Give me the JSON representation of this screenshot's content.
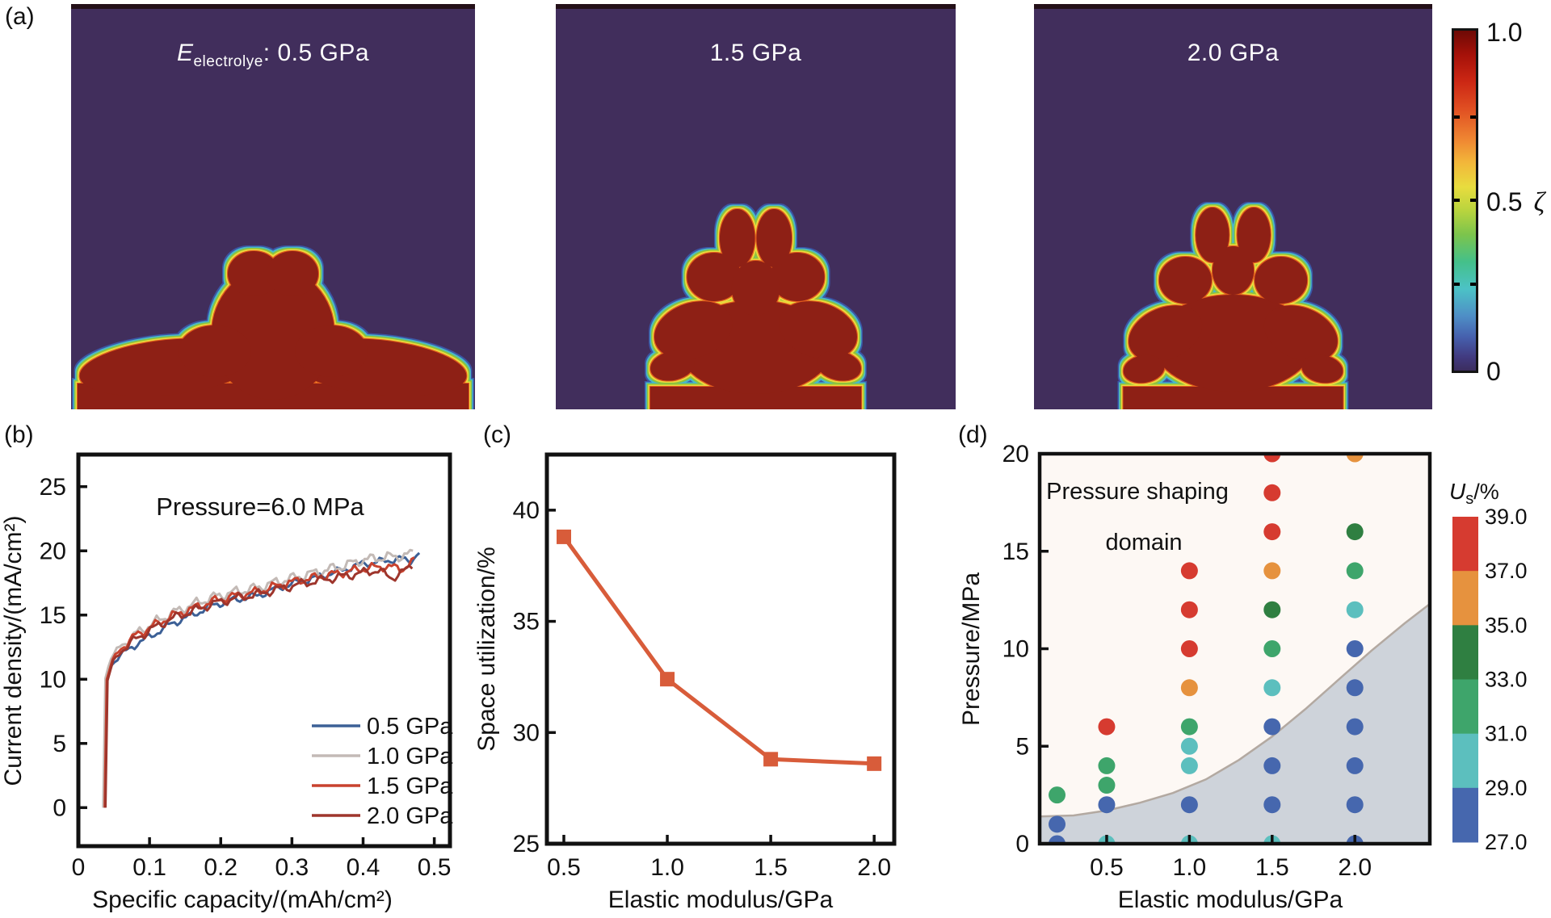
{
  "figure": {
    "bg": "#ffffff",
    "panels": {
      "a": "(a)",
      "b": "(b)",
      "c": "(c)",
      "d": "(d)"
    }
  },
  "panel_a": {
    "bg_color": "#412e5c",
    "body_color": "#8e2015",
    "top_strip_color": "#241018",
    "edge_layers": [
      {
        "color": "#3b55a5",
        "radius": 7
      },
      {
        "color": "#4ab8c8",
        "radius": 5.5
      },
      {
        "color": "#8cc43c",
        "radius": 4
      },
      {
        "color": "#ecd83c",
        "radius": 2.5
      },
      {
        "color": "#e05a1e",
        "radius": 1.2
      }
    ],
    "snapshots": [
      {
        "label_E": "E",
        "label_sub": "electrolye",
        "label_rest": ": 0.5 GPa"
      },
      {
        "label": "1.5 GPa"
      },
      {
        "label": "2.0 GPa"
      }
    ],
    "colorbar": {
      "top_label": "1.0",
      "mid_label": "0.5",
      "mid_symbol": "ζ",
      "bottom_label": "0",
      "gradient": [
        "#6e0a05 0%",
        "#a51109 7%",
        "#cc2714 15%",
        "#e04f22 23%",
        "#ef8632 32%",
        "#f2b83a 39%",
        "#e8dc3e 46%",
        "#b8d43e 53%",
        "#7cc44c 60%",
        "#44c08a 68%",
        "#4cc2c6 76%",
        "#4e8ec6 84%",
        "#4661ae 90%",
        "#413a80 96%",
        "#3b2d5e 100%"
      ]
    }
  },
  "chart_data": [
    {
      "id": "b",
      "type": "line",
      "annotation": "Pressure=6.0 MPa",
      "xlabel": "Specific capacity/(mAh/cm²)",
      "ylabel": "Current density/(mA/cm²)",
      "xlim": [
        0,
        0.522
      ],
      "ylim": [
        -3,
        27.5
      ],
      "xticks": [
        0,
        0.1,
        0.2,
        0.3,
        0.4,
        0.5
      ],
      "xtick_labels": [
        "0",
        "0.1",
        "0.2",
        "0.3",
        "0.4",
        "0.5"
      ],
      "yticks": [
        0,
        5,
        10,
        15,
        20,
        25
      ],
      "ytick_labels": [
        "0",
        "5",
        "10",
        "15",
        "20",
        "25"
      ],
      "series": [
        {
          "name": "0.5 GPa",
          "color": "#3c6096",
          "j": 0.22,
          "f1": 210,
          "f2": 520,
          "ph": 0.4,
          "points": [
            [
              0.036,
              0
            ],
            [
              0.039,
              9.7
            ],
            [
              0.046,
              11.1
            ],
            [
              0.06,
              11.9
            ],
            [
              0.08,
              12.7
            ],
            [
              0.1,
              13.3
            ],
            [
              0.13,
              14.3
            ],
            [
              0.16,
              15.0
            ],
            [
              0.19,
              15.8
            ],
            [
              0.22,
              16.2
            ],
            [
              0.25,
              16.5
            ],
            [
              0.28,
              17.1
            ],
            [
              0.31,
              17.6
            ],
            [
              0.34,
              18.0
            ],
            [
              0.37,
              18.5
            ],
            [
              0.4,
              19.0
            ],
            [
              0.43,
              19.2
            ],
            [
              0.45,
              19.4
            ],
            [
              0.465,
              19.2
            ],
            [
              0.48,
              19.9
            ]
          ]
        },
        {
          "name": "1.0 GPa",
          "color": "#c3bab6",
          "j": 0.3,
          "f1": 230,
          "f2": 560,
          "ph": 1.5,
          "points": [
            [
              0.035,
              0
            ],
            [
              0.038,
              10.1
            ],
            [
              0.045,
              11.6
            ],
            [
              0.06,
              12.6
            ],
            [
              0.08,
              13.5
            ],
            [
              0.1,
              14.2
            ],
            [
              0.13,
              15.1
            ],
            [
              0.16,
              15.8
            ],
            [
              0.19,
              16.4
            ],
            [
              0.22,
              16.8
            ],
            [
              0.25,
              17.1
            ],
            [
              0.28,
              17.6
            ],
            [
              0.31,
              18.0
            ],
            [
              0.34,
              18.4
            ],
            [
              0.37,
              18.8
            ],
            [
              0.4,
              19.3
            ],
            [
              0.43,
              19.5
            ],
            [
              0.455,
              19.6
            ],
            [
              0.47,
              19.8
            ]
          ]
        },
        {
          "name": "1.5 GPa",
          "color": "#c8422e",
          "j": 0.26,
          "f1": 225,
          "f2": 540,
          "ph": 2.6,
          "points": [
            [
              0.037,
              0
            ],
            [
              0.04,
              10.0
            ],
            [
              0.047,
              11.4
            ],
            [
              0.06,
              12.4
            ],
            [
              0.08,
              13.4
            ],
            [
              0.1,
              14.0
            ],
            [
              0.13,
              14.9
            ],
            [
              0.16,
              15.5
            ],
            [
              0.19,
              16.1
            ],
            [
              0.22,
              16.5
            ],
            [
              0.25,
              16.8
            ],
            [
              0.28,
              17.3
            ],
            [
              0.31,
              17.7
            ],
            [
              0.34,
              18.0
            ],
            [
              0.37,
              18.3
            ],
            [
              0.4,
              18.6
            ],
            [
              0.43,
              18.8
            ],
            [
              0.455,
              18.6
            ],
            [
              0.475,
              19.3
            ]
          ]
        },
        {
          "name": "2.0 GPa",
          "color": "#9e352c",
          "j": 0.26,
          "f1": 215,
          "f2": 500,
          "ph": 3.7,
          "points": [
            [
              0.038,
              0
            ],
            [
              0.041,
              9.9
            ],
            [
              0.048,
              11.3
            ],
            [
              0.06,
              12.2
            ],
            [
              0.08,
              13.1
            ],
            [
              0.1,
              13.8
            ],
            [
              0.13,
              14.7
            ],
            [
              0.16,
              15.3
            ],
            [
              0.19,
              15.9
            ],
            [
              0.22,
              16.3
            ],
            [
              0.25,
              16.6
            ],
            [
              0.28,
              17.0
            ],
            [
              0.31,
              17.4
            ],
            [
              0.34,
              17.7
            ],
            [
              0.37,
              18.0
            ],
            [
              0.4,
              18.3
            ],
            [
              0.42,
              18.5
            ],
            [
              0.44,
              17.9
            ],
            [
              0.455,
              18.3
            ],
            [
              0.47,
              18.9
            ]
          ]
        }
      ]
    },
    {
      "id": "c",
      "type": "line",
      "xlabel": "Elastic modulus/GPa",
      "ylabel": "Space utilization/%",
      "xlim": [
        0.418,
        2.097
      ],
      "ylim": [
        25,
        42.5
      ],
      "xticks": [
        0.5,
        1.0,
        1.5,
        2.0
      ],
      "xtick_labels": [
        "0.5",
        "1.0",
        "1.5",
        "2.0"
      ],
      "yticks": [
        25,
        30,
        35,
        40
      ],
      "ytick_labels": [
        "25",
        "30",
        "35",
        "40"
      ],
      "color": "#d85c3a",
      "x": [
        0.5,
        1.0,
        1.5,
        2.0
      ],
      "values": [
        38.8,
        32.4,
        28.8,
        28.6
      ]
    },
    {
      "id": "d",
      "type": "scatter",
      "xlabel": "Elastic modulus/GPa",
      "ylabel": "Pressure/MPa",
      "annotation_line1": "Pressure shaping",
      "annotation_line2": "domain",
      "xlim": [
        0.095,
        2.453
      ],
      "ylim": [
        0,
        20
      ],
      "xticks": [
        0.5,
        1.0,
        1.5,
        2.0
      ],
      "xtick_labels": [
        "0.5",
        "1.0",
        "1.5",
        "2.0"
      ],
      "yticks": [
        0,
        5,
        10,
        15,
        20
      ],
      "ytick_labels": [
        "0",
        "5",
        "10",
        "15",
        "20"
      ],
      "bg_tint": "#fdf8f4",
      "region": {
        "fill": "#ced3da",
        "line_color": "#b3a9a1",
        "boundary": [
          [
            0.095,
            1.4
          ],
          [
            0.3,
            1.45
          ],
          [
            0.5,
            1.7
          ],
          [
            0.7,
            2.1
          ],
          [
            0.9,
            2.6
          ],
          [
            1.1,
            3.3
          ],
          [
            1.3,
            4.3
          ],
          [
            1.5,
            5.5
          ],
          [
            1.7,
            6.9
          ],
          [
            1.9,
            8.4
          ],
          [
            2.1,
            9.9
          ],
          [
            2.3,
            11.3
          ],
          [
            2.453,
            12.3
          ]
        ]
      },
      "colorbar": {
        "title_italic": "U",
        "title_sub": "s",
        "title_rest": "/%",
        "colors": [
          "#d63b30",
          "#e6923e",
          "#2f7f41",
          "#3ea56b",
          "#5cbfbe",
          "#4667ae"
        ],
        "tick_labels": [
          "39.0",
          "37.0",
          "35.0",
          "33.0",
          "31.0",
          "29.0",
          "27.0"
        ],
        "bins": [
          "37-39",
          "35-37",
          "33-35",
          "31-33",
          "29-31",
          "27-29"
        ]
      },
      "points": [
        {
          "e": 0.2,
          "p": 2.5,
          "c": 3
        },
        {
          "e": 0.2,
          "p": 1,
          "c": 5
        },
        {
          "e": 0.2,
          "p": 0,
          "c": 5
        },
        {
          "e": 0.5,
          "p": 6,
          "c": 0
        },
        {
          "e": 0.5,
          "p": 4,
          "c": 3
        },
        {
          "e": 0.5,
          "p": 3,
          "c": 3
        },
        {
          "e": 0.5,
          "p": 2,
          "c": 5
        },
        {
          "e": 0.5,
          "p": 0,
          "c": 4
        },
        {
          "e": 1,
          "p": 14,
          "c": 0
        },
        {
          "e": 1,
          "p": 12,
          "c": 0
        },
        {
          "e": 1,
          "p": 10,
          "c": 0
        },
        {
          "e": 1,
          "p": 8,
          "c": 1
        },
        {
          "e": 1,
          "p": 6,
          "c": 3
        },
        {
          "e": 1,
          "p": 5,
          "c": 4
        },
        {
          "e": 1,
          "p": 4,
          "c": 4
        },
        {
          "e": 1,
          "p": 2,
          "c": 5
        },
        {
          "e": 1,
          "p": 0,
          "c": 4
        },
        {
          "e": 1.5,
          "p": 20,
          "c": 0
        },
        {
          "e": 1.5,
          "p": 18,
          "c": 0
        },
        {
          "e": 1.5,
          "p": 16,
          "c": 0
        },
        {
          "e": 1.5,
          "p": 14,
          "c": 1
        },
        {
          "e": 1.5,
          "p": 12,
          "c": 2
        },
        {
          "e": 1.5,
          "p": 10,
          "c": 3
        },
        {
          "e": 1.5,
          "p": 8,
          "c": 4
        },
        {
          "e": 1.5,
          "p": 6,
          "c": 5
        },
        {
          "e": 1.5,
          "p": 4,
          "c": 5
        },
        {
          "e": 1.5,
          "p": 2,
          "c": 5
        },
        {
          "e": 1.5,
          "p": 0,
          "c": 4
        },
        {
          "e": 2,
          "p": 20,
          "c": 1
        },
        {
          "e": 2,
          "p": 16,
          "c": 2
        },
        {
          "e": 2,
          "p": 14,
          "c": 3
        },
        {
          "e": 2,
          "p": 12,
          "c": 4
        },
        {
          "e": 2,
          "p": 10,
          "c": 5
        },
        {
          "e": 2,
          "p": 8,
          "c": 5
        },
        {
          "e": 2,
          "p": 6,
          "c": 5
        },
        {
          "e": 2,
          "p": 4,
          "c": 5
        },
        {
          "e": 2,
          "p": 2,
          "c": 5
        },
        {
          "e": 2,
          "p": 0,
          "c": 5
        }
      ]
    }
  ]
}
